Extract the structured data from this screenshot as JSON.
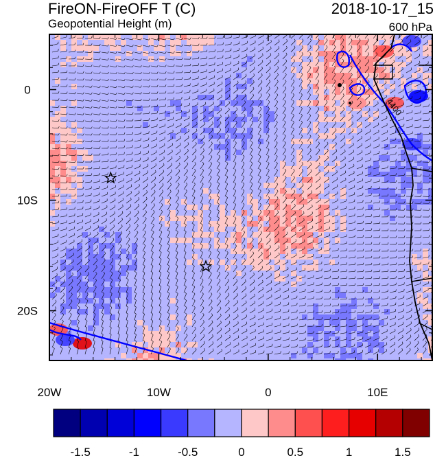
{
  "header": {
    "title_left": "FireON-FireOFF T (C)",
    "subtitle_left": "Geopotential Height (m)",
    "title_right": "2018-10-17_15",
    "subtitle_right": "600 hPa"
  },
  "axes": {
    "x_ticks": [
      {
        "lon": -20,
        "label": "20W"
      },
      {
        "lon": -10,
        "label": "10W"
      },
      {
        "lon": 0,
        "label": "0"
      },
      {
        "lon": 10,
        "label": "10E"
      }
    ],
    "y_ticks": [
      {
        "lat": 0,
        "label": "0"
      },
      {
        "lat": -10,
        "label": "10S"
      },
      {
        "lat": -20,
        "label": "20S"
      }
    ],
    "lon_range": [
      -20,
      15
    ],
    "lat_range": [
      -24.5,
      5
    ]
  },
  "contour_label": "4400",
  "stars": [
    {
      "lon": -14.4,
      "lat": -8.0
    },
    {
      "lon": -5.7,
      "lat": -16.0
    }
  ],
  "colorbar": {
    "labels": [
      "-1.5",
      "-1",
      "-0.5",
      "0",
      "0.5",
      "1",
      "1.5"
    ],
    "colors": [
      "#000080",
      "#0000b0",
      "#0000d8",
      "#0000ff",
      "#3a3aff",
      "#7878ff",
      "#b4b4ff",
      "#ffc8c8",
      "#ff8c8c",
      "#ff5050",
      "#ff1e1e",
      "#e60000",
      "#b40000",
      "#800000"
    ]
  },
  "colors": {
    "pos_light": "#ffc8c8",
    "neg_light": "#b4b4ff",
    "contour": "#0000ff",
    "coast": "#000000"
  }
}
